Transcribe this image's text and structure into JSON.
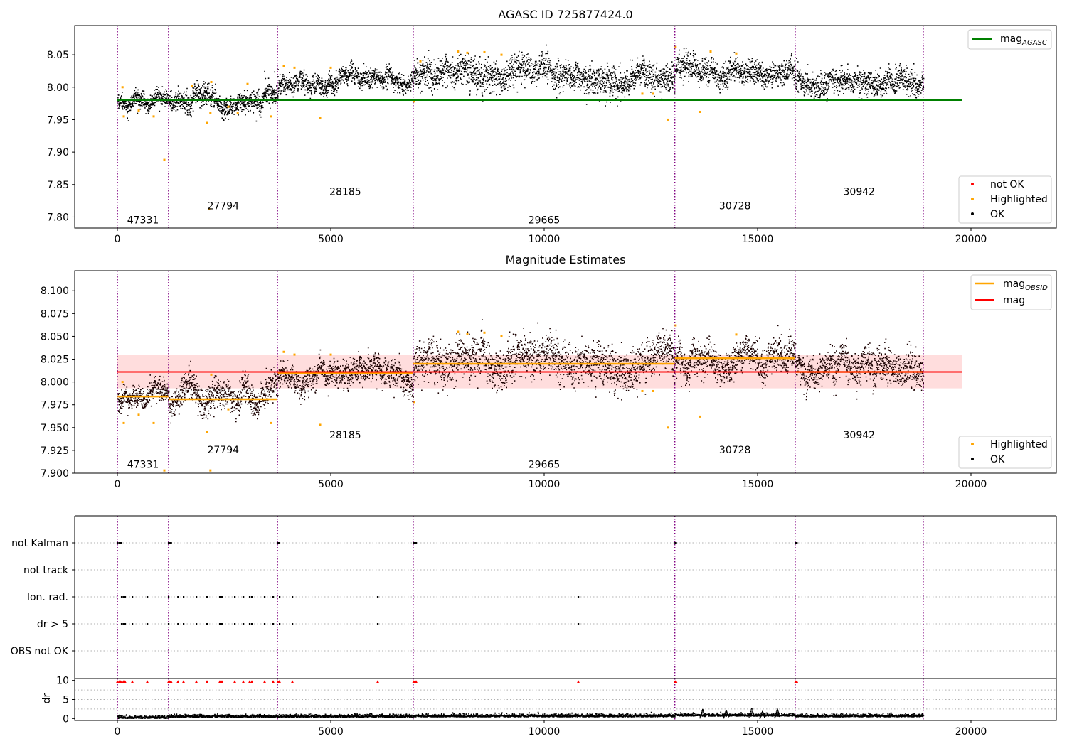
{
  "chart_data": [
    {
      "type": "scatter",
      "panel": "agasc",
      "title": "AGASC ID 725877424.0",
      "xlim": [
        -1000,
        22000
      ],
      "ylim": [
        7.783,
        8.095
      ],
      "xticks": [
        0,
        5000,
        10000,
        15000,
        20000
      ],
      "yticks": [
        7.8,
        7.85,
        7.9,
        7.95,
        8.0,
        8.05
      ],
      "ytick_labels": [
        "7.80",
        "7.85",
        "7.90",
        "7.95",
        "8.00",
        "8.05"
      ],
      "obsid_boundaries": [
        0,
        1200,
        3750,
        6930,
        13060,
        15880,
        18880
      ],
      "obsids": [
        {
          "label": "47331",
          "x": 600,
          "y": 7.79
        },
        {
          "label": "27794",
          "x": 2480,
          "y": 7.812
        },
        {
          "label": "28185",
          "x": 5340,
          "y": 7.834
        },
        {
          "label": "29665",
          "x": 10000,
          "y": 7.79
        },
        {
          "label": "30728",
          "x": 14470,
          "y": 7.812
        },
        {
          "label": "30942",
          "x": 17380,
          "y": 7.834
        }
      ],
      "segments": [
        {
          "x0": 0,
          "x1": 1200,
          "mean": 7.983,
          "spread": 0.006
        },
        {
          "x0": 1200,
          "x1": 3750,
          "mean": 7.98,
          "spread": 0.008
        },
        {
          "x0": 3750,
          "x1": 6930,
          "mean": 8.009,
          "spread": 0.007
        },
        {
          "x0": 6930,
          "x1": 13060,
          "mean": 8.02,
          "spread": 0.011
        },
        {
          "x0": 13060,
          "x1": 15880,
          "mean": 8.029,
          "spread": 0.009
        },
        {
          "x0": 15880,
          "x1": 18880,
          "mean": 8.015,
          "spread": 0.009
        }
      ],
      "highlighted_points": [
        [
          120,
          8.0
        ],
        [
          150,
          7.955
        ],
        [
          500,
          7.964
        ],
        [
          850,
          7.955
        ],
        [
          1100,
          7.888
        ],
        [
          1750,
          8.002
        ],
        [
          2100,
          7.945
        ],
        [
          2180,
          7.96
        ],
        [
          2150,
          7.812
        ],
        [
          2200,
          8.008
        ],
        [
          2600,
          7.97
        ],
        [
          2820,
          7.96
        ],
        [
          3050,
          8.005
        ],
        [
          3600,
          7.955
        ],
        [
          3900,
          8.033
        ],
        [
          4150,
          8.03
        ],
        [
          4750,
          7.953
        ],
        [
          5000,
          8.03
        ],
        [
          6950,
          7.978
        ],
        [
          7100,
          8.04
        ],
        [
          7980,
          8.055
        ],
        [
          8200,
          8.053
        ],
        [
          8600,
          8.054
        ],
        [
          9000,
          8.05
        ],
        [
          12300,
          7.99
        ],
        [
          12550,
          7.99
        ],
        [
          12900,
          7.95
        ],
        [
          13080,
          8.062
        ],
        [
          13650,
          7.962
        ],
        [
          13900,
          8.055
        ],
        [
          14500,
          8.052
        ]
      ],
      "horizontal_lines": [
        {
          "name": "mag_AGASC",
          "y": 7.98,
          "x0": 0,
          "x1": 19800,
          "color": "#008000"
        }
      ],
      "legends": [
        {
          "position": "upper right",
          "entries": [
            {
              "label": "mag",
              "sub": "AGASC",
              "marker": "line",
              "color": "#008000"
            }
          ]
        },
        {
          "position": "lower right",
          "entries": [
            {
              "label": "not OK",
              "marker": "dot",
              "color": "#ff0000"
            },
            {
              "label": "Highlighted",
              "marker": "dot",
              "color": "#ffa500"
            },
            {
              "label": "OK",
              "marker": "dot",
              "color": "#000000"
            }
          ]
        }
      ]
    },
    {
      "type": "scatter",
      "panel": "estimates",
      "title": "Magnitude Estimates",
      "xlim": [
        -1000,
        22000
      ],
      "ylim": [
        7.9,
        8.122
      ],
      "xticks": [
        0,
        5000,
        10000,
        15000,
        20000
      ],
      "yticks": [
        7.9,
        7.925,
        7.95,
        7.975,
        8.0,
        8.025,
        8.05,
        8.075,
        8.1
      ],
      "ytick_labels": [
        "7.900",
        "7.925",
        "7.950",
        "7.975",
        "8.000",
        "8.025",
        "8.050",
        "8.075",
        "8.100"
      ],
      "obsid_boundaries": [
        0,
        1200,
        3750,
        6930,
        13060,
        15880,
        18880
      ],
      "obsids": [
        {
          "label": "47331",
          "x": 600,
          "y": 7.906
        },
        {
          "label": "27794",
          "x": 2480,
          "y": 7.922
        },
        {
          "label": "28185",
          "x": 5340,
          "y": 7.938
        },
        {
          "label": "29665",
          "x": 10000,
          "y": 7.906
        },
        {
          "label": "30728",
          "x": 14470,
          "y": 7.922
        },
        {
          "label": "30942",
          "x": 17380,
          "y": 7.938
        }
      ],
      "segments": [
        {
          "x0": 0,
          "x1": 1200,
          "mean": 7.983,
          "spread": 0.006
        },
        {
          "x0": 1200,
          "x1": 3750,
          "mean": 7.98,
          "spread": 0.008
        },
        {
          "x0": 3750,
          "x1": 6930,
          "mean": 8.009,
          "spread": 0.007
        },
        {
          "x0": 6930,
          "x1": 13060,
          "mean": 8.02,
          "spread": 0.011
        },
        {
          "x0": 13060,
          "x1": 15880,
          "mean": 8.029,
          "spread": 0.009
        },
        {
          "x0": 15880,
          "x1": 18880,
          "mean": 8.015,
          "spread": 0.009
        }
      ],
      "highlighted_points": [
        [
          120,
          8.0
        ],
        [
          150,
          7.955
        ],
        [
          500,
          7.964
        ],
        [
          850,
          7.955
        ],
        [
          1100,
          7.903
        ],
        [
          2100,
          7.945
        ],
        [
          2200,
          8.008
        ],
        [
          2180,
          7.903
        ],
        [
          2600,
          7.97
        ],
        [
          3600,
          7.955
        ],
        [
          3900,
          8.033
        ],
        [
          4150,
          8.03
        ],
        [
          4750,
          7.953
        ],
        [
          5000,
          8.03
        ],
        [
          6950,
          7.978
        ],
        [
          7980,
          8.055
        ],
        [
          8200,
          8.053
        ],
        [
          8600,
          8.054
        ],
        [
          9000,
          8.05
        ],
        [
          12300,
          7.99
        ],
        [
          12550,
          7.99
        ],
        [
          12900,
          7.95
        ],
        [
          13080,
          8.062
        ],
        [
          13650,
          7.962
        ],
        [
          14500,
          8.052
        ]
      ],
      "obsid_means": [
        {
          "x0": 0,
          "x1": 1200,
          "y": 7.984
        },
        {
          "x0": 1200,
          "x1": 3750,
          "y": 7.981
        },
        {
          "x0": 3750,
          "x1": 6930,
          "y": 8.01
        },
        {
          "x0": 6930,
          "x1": 13060,
          "y": 8.02
        },
        {
          "x0": 13060,
          "x1": 15880,
          "y": 8.026
        },
        {
          "x0": 15880,
          "x1": 18880,
          "y": 8.011
        }
      ],
      "mag": {
        "y": 8.011,
        "band": [
          7.993,
          8.03
        ],
        "x0": 0,
        "x1": 19800,
        "color": "#ff0000",
        "band_color": "#ffdddd"
      },
      "legends": [
        {
          "position": "upper right",
          "entries": [
            {
              "label": "mag",
              "sub": "OBSID",
              "marker": "line",
              "color": "#ffa500"
            },
            {
              "label": "mag",
              "marker": "line",
              "color": "#ff0000"
            }
          ]
        },
        {
          "position": "lower right",
          "entries": [
            {
              "label": "Highlighted",
              "marker": "dot",
              "color": "#ffa500"
            },
            {
              "label": "OK",
              "marker": "dot",
              "color": "#000000"
            }
          ]
        }
      ]
    },
    {
      "type": "scatter",
      "panel": "flags",
      "xlim": [
        -1000,
        22000
      ],
      "categories": [
        "not Kalman",
        "not track",
        "Ion. rad.",
        "dr > 5",
        "OBS not OK"
      ],
      "obsid_boundaries": [
        0,
        1200,
        3750,
        6930,
        13060,
        15880,
        18880
      ],
      "flag_points": {
        "not Kalman": [
          0,
          40,
          80,
          1200,
          1230,
          1260,
          3760,
          3790,
          6940,
          6970,
          7000,
          13070,
          13090,
          15890,
          15920
        ],
        "not track": [],
        "Ion. rad.": [
          100,
          140,
          180,
          350,
          700,
          1200,
          1420,
          1550,
          1850,
          2100,
          2400,
          2450,
          2750,
          2950,
          3100,
          3150,
          3450,
          3650,
          3800,
          4100,
          6100,
          10800
        ],
        "dr > 5": [
          100,
          140,
          180,
          350,
          700,
          1200,
          1420,
          1550,
          1850,
          2100,
          2400,
          2450,
          2750,
          2950,
          3100,
          3150,
          3450,
          3650,
          3800,
          4100,
          6100,
          10800
        ],
        "OBS not OK": []
      }
    },
    {
      "type": "line",
      "panel": "dr",
      "ylabel": "dr",
      "xlim": [
        -1000,
        22000
      ],
      "ylim": [
        -0.5,
        10.5
      ],
      "xticks": [
        0,
        5000,
        10000,
        15000,
        20000
      ],
      "yticks": [
        0,
        5,
        10
      ],
      "minor_yticks": [
        2.5,
        7.5
      ],
      "obsid_boundaries": [
        0,
        1200,
        3750,
        6930,
        13060,
        15880,
        18880
      ],
      "dr_segments": [
        {
          "x0": 0,
          "x1": 1200,
          "level": 0.4
        },
        {
          "x0": 1200,
          "x1": 3750,
          "level": 0.7
        },
        {
          "x0": 3750,
          "x1": 6930,
          "level": 0.7
        },
        {
          "x0": 6930,
          "x1": 13060,
          "level": 0.8
        },
        {
          "x0": 13060,
          "x1": 15880,
          "level": 1.0
        },
        {
          "x0": 15880,
          "x1": 18880,
          "level": 0.8
        }
      ],
      "dr_spikes": [
        [
          13700,
          2.5
        ],
        [
          14250,
          2.3
        ],
        [
          14850,
          2.8
        ],
        [
          15100,
          2.0
        ],
        [
          15450,
          2.6
        ]
      ],
      "clipped_points": [
        0,
        40,
        80,
        140,
        180,
        350,
        700,
        1200,
        1230,
        1260,
        1420,
        1550,
        1850,
        2100,
        2400,
        2450,
        2750,
        2950,
        3100,
        3150,
        3450,
        3650,
        3760,
        3790,
        3800,
        4100,
        6100,
        6940,
        6970,
        7000,
        10800,
        13070,
        13090,
        15890,
        15920
      ]
    }
  ]
}
